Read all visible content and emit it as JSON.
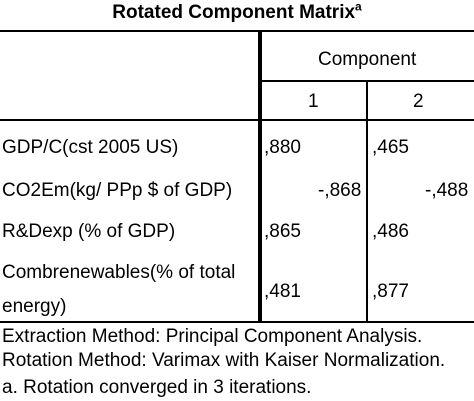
{
  "title": "Rotated Component Matrix",
  "title_footnote_mark": "a",
  "header": {
    "group_label": "Component",
    "columns": [
      "1",
      "2"
    ]
  },
  "rows": [
    {
      "label": "GDP/C(cst 2005 US)",
      "c1": ",880",
      "c2": ",465"
    },
    {
      "label": "CO2Em(kg/ PPp $ of GDP)",
      "c1": "-,868",
      "c2": "-,488"
    },
    {
      "label": "R&Dexp (% of GDP)",
      "c1": ",865",
      "c2": ",486"
    },
    {
      "label_line1": "Combrenewables(% of total",
      "label_line2": "energy)",
      "c1": ",481",
      "c2": ",877"
    }
  ],
  "footnotes": {
    "extraction": "Extraction Method: Principal Component Analysis.",
    "rotation": " Rotation Method: Varimax with Kaiser Normalization.",
    "converged": "a. Rotation converged in 3 iterations."
  }
}
